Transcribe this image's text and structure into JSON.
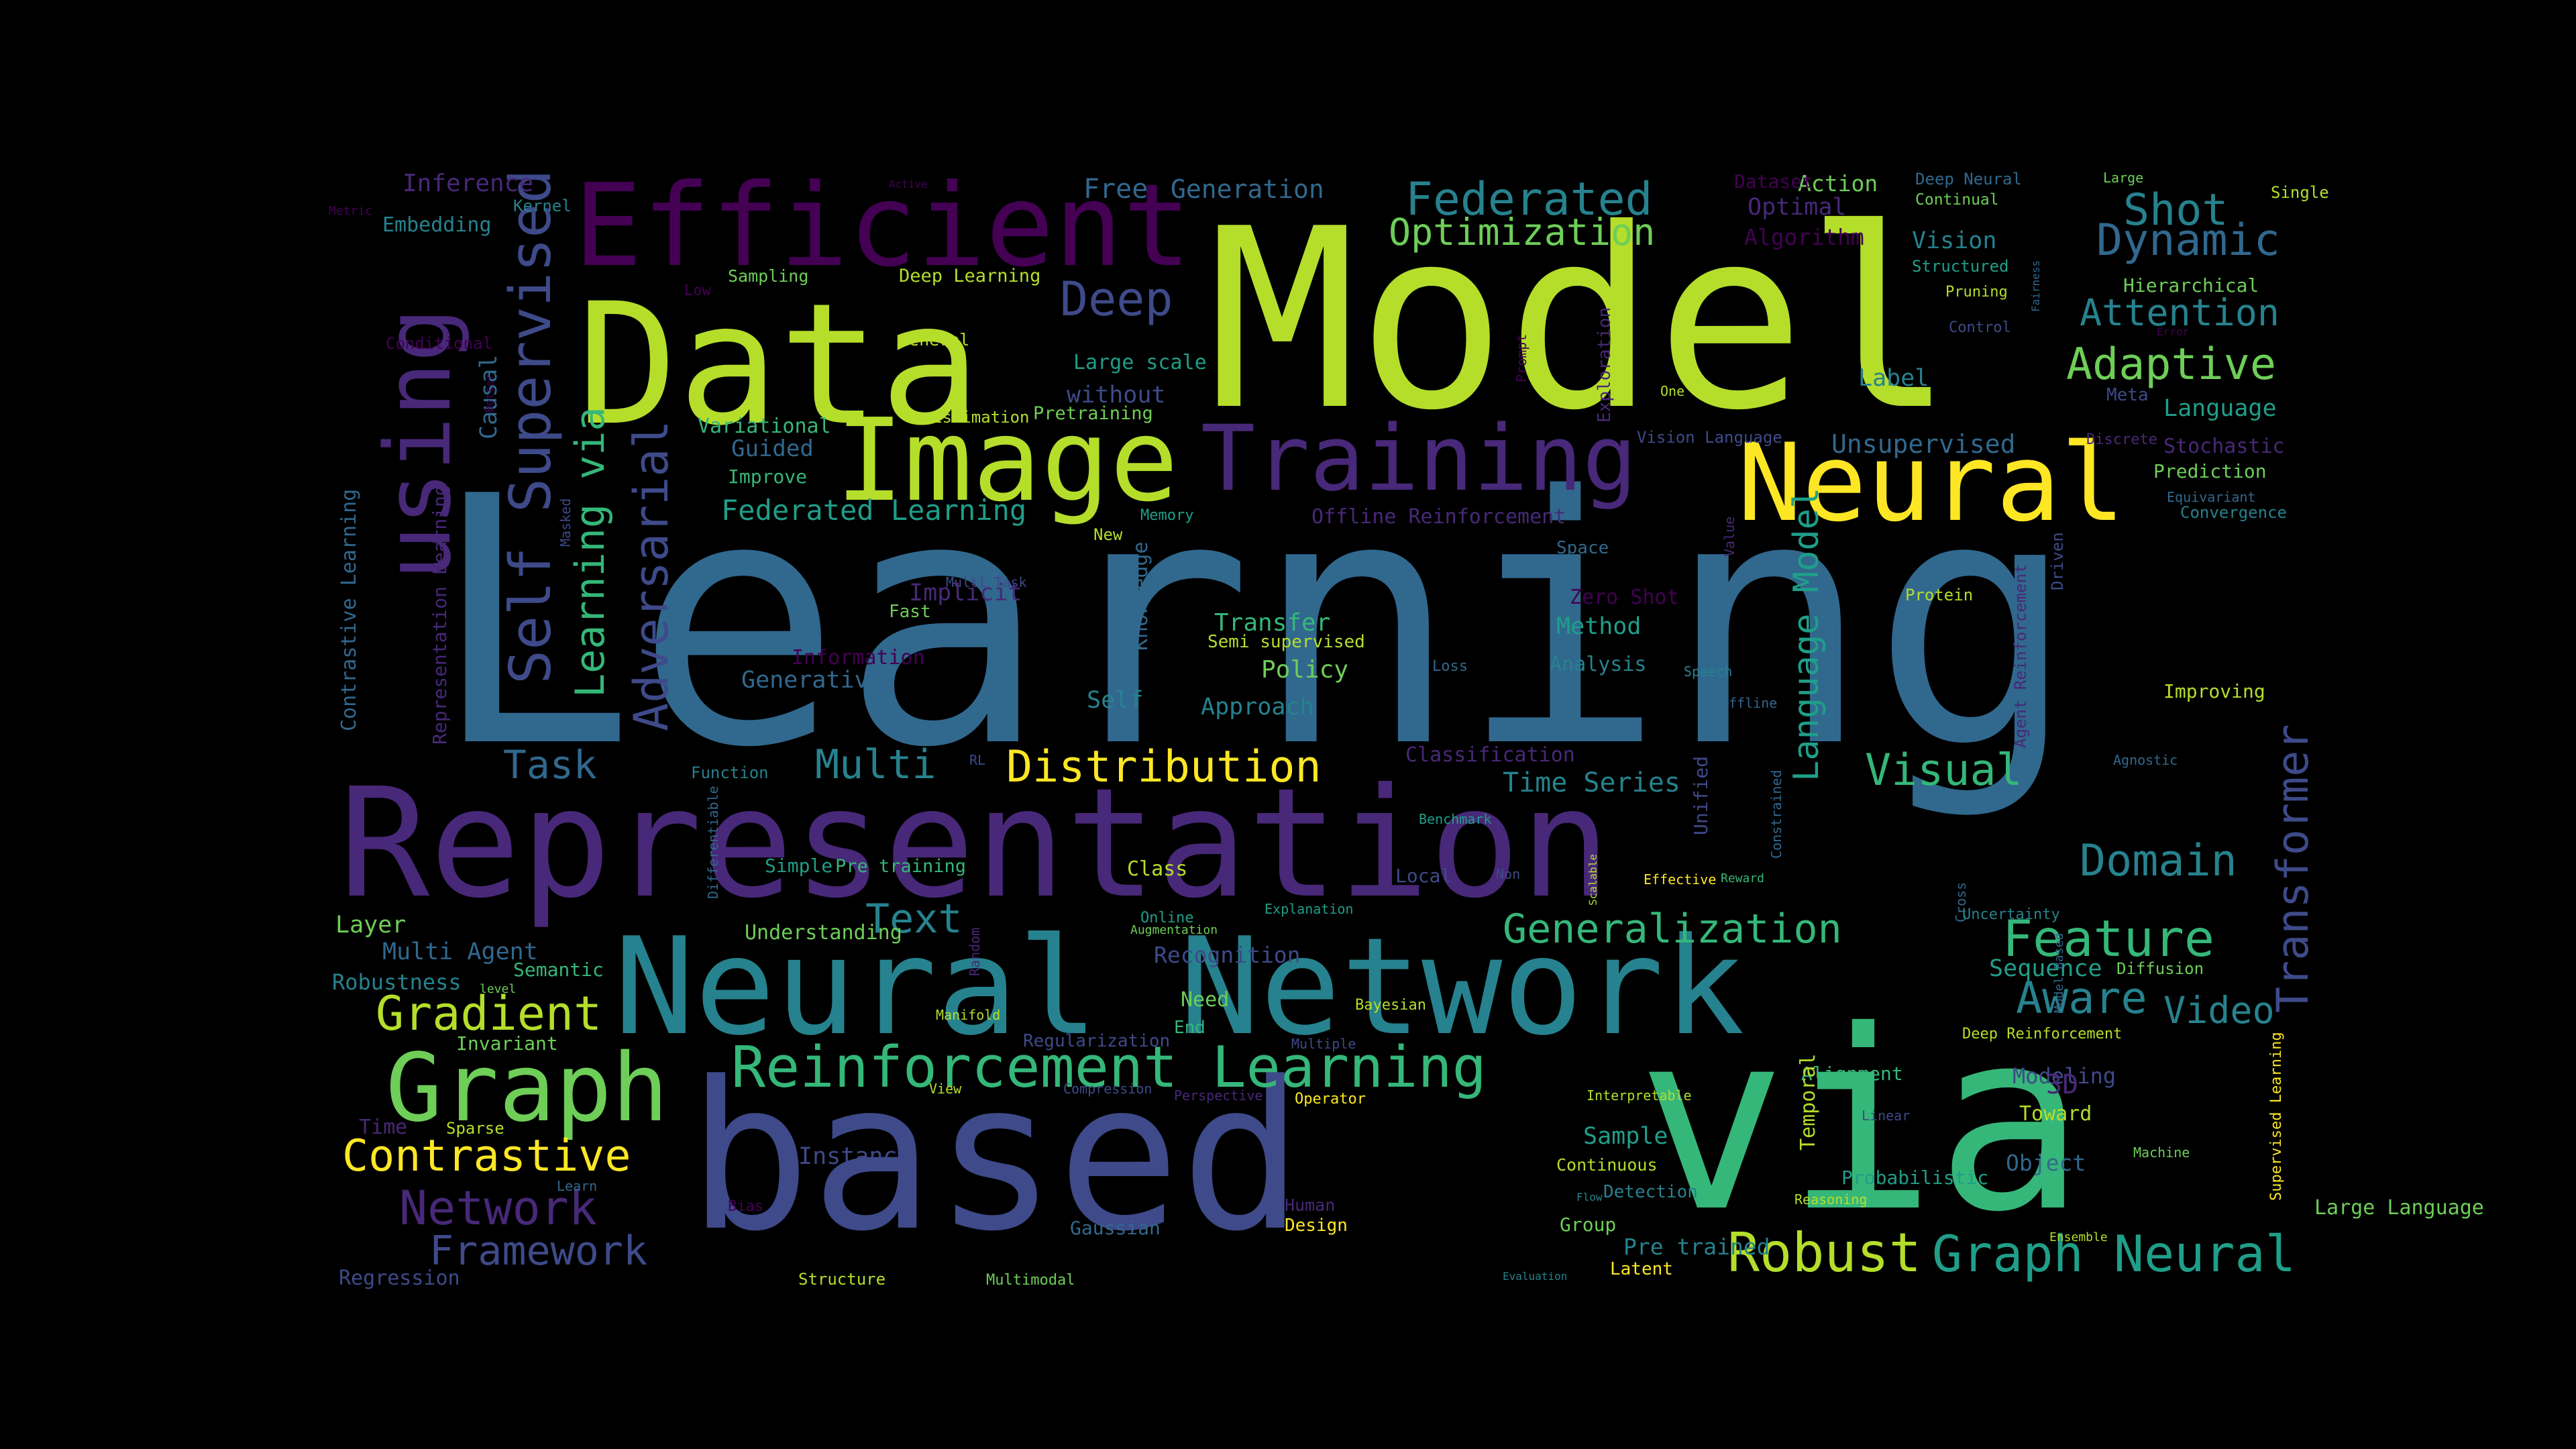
{
  "title": "Word cloud",
  "palette": {
    "background": "#000000",
    "yellow": "#fde725",
    "lime": "#b5de2b",
    "green": "#6ece58",
    "teal_green": "#35b779",
    "teal": "#1f9e89",
    "blue_teal": "#26828e",
    "steel": "#31688e",
    "indigo": "#3e4a89",
    "violet": "#482878",
    "deep_purple": "#440154"
  },
  "words": [
    {
      "text": "Learning",
      "color": "#31688e",
      "rotate": 0
    },
    {
      "text": "Model",
      "color": "#b5de2b",
      "rotate": 0
    },
    {
      "text": "Representation",
      "color": "#482878",
      "rotate": 0
    },
    {
      "text": "based",
      "color": "#3e4a89",
      "rotate": 0
    },
    {
      "text": "via",
      "color": "#35b779",
      "rotate": 0
    },
    {
      "text": "Data",
      "color": "#b5de2b",
      "rotate": 0
    },
    {
      "text": "Neural Network",
      "color": "#26828e",
      "rotate": 0
    },
    {
      "text": "Efficient",
      "color": "#440154",
      "rotate": 0
    },
    {
      "text": "Image",
      "color": "#b5de2b",
      "rotate": 0
    },
    {
      "text": "Neural",
      "color": "#fde725",
      "rotate": 0
    },
    {
      "text": "Training",
      "color": "#482878",
      "rotate": 0
    },
    {
      "text": "using",
      "color": "#482878",
      "rotate": -90
    },
    {
      "text": "Graph",
      "color": "#6ece58",
      "rotate": 0
    },
    {
      "text": "Reinforcement Learning",
      "color": "#35b779",
      "rotate": 0
    },
    {
      "text": "Self Supervised",
      "color": "#3e4a89",
      "rotate": -90
    },
    {
      "text": "Adversarial",
      "color": "#3e4a89",
      "rotate": -90
    },
    {
      "text": "Learning via",
      "color": "#35b779",
      "rotate": -90
    },
    {
      "text": "Transformer",
      "color": "#3e4a89",
      "rotate": -90
    },
    {
      "text": "Distribution",
      "color": "#fde725",
      "rotate": 0
    },
    {
      "text": "Generalization",
      "color": "#35b779",
      "rotate": 0
    },
    {
      "text": "Feature",
      "color": "#35b779",
      "rotate": 0
    },
    {
      "text": "Robust",
      "color": "#b5de2b",
      "rotate": 0
    },
    {
      "text": "Graph Neural",
      "color": "#1f9e89",
      "rotate": 0
    },
    {
      "text": "Gradient",
      "color": "#b5de2b",
      "rotate": 0
    },
    {
      "text": "Contrastive",
      "color": "#fde725",
      "rotate": 0
    },
    {
      "text": "Network",
      "color": "#482878",
      "rotate": 0
    },
    {
      "text": "Framework",
      "color": "#3e4a89",
      "rotate": 0
    },
    {
      "text": "Federated",
      "color": "#26828e",
      "rotate": 0
    },
    {
      "text": "Optimization",
      "color": "#6ece58",
      "rotate": 0
    },
    {
      "text": "Deep",
      "color": "#3e4a89",
      "rotate": 0
    },
    {
      "text": "Shot",
      "color": "#26828e",
      "rotate": 0
    },
    {
      "text": "Dynamic",
      "color": "#31688e",
      "rotate": 0
    },
    {
      "text": "Adaptive",
      "color": "#6ece58",
      "rotate": 0
    },
    {
      "text": "Attention",
      "color": "#26828e",
      "rotate": 0
    },
    {
      "text": "Domain",
      "color": "#26828e",
      "rotate": 0
    },
    {
      "text": "Aware",
      "color": "#26828e",
      "rotate": 0
    },
    {
      "text": "Video",
      "color": "#26828e",
      "rotate": 0
    },
    {
      "text": "Visual",
      "color": "#35b779",
      "rotate": 0
    },
    {
      "text": "Multi",
      "color": "#26828e",
      "rotate": 0
    },
    {
      "text": "Task",
      "color": "#31688e",
      "rotate": 0
    },
    {
      "text": "Text",
      "color": "#26828e",
      "rotate": 0
    },
    {
      "text": "Language Model",
      "color": "#1f9e89",
      "rotate": -90
    },
    {
      "text": "Federated Learning",
      "color": "#1f9e89",
      "rotate": 0
    },
    {
      "text": "Time Series",
      "color": "#26828e",
      "rotate": 0
    },
    {
      "text": "Unsupervised",
      "color": "#31688e",
      "rotate": 0
    },
    {
      "text": "Generation",
      "color": "#31688e",
      "rotate": 0
    },
    {
      "text": "Free",
      "color": "#31688e",
      "rotate": 0
    },
    {
      "text": "Inference",
      "color": "#482878",
      "rotate": 0
    },
    {
      "text": "Embedding",
      "color": "#26828e",
      "rotate": 0
    },
    {
      "text": "Kernel",
      "color": "#26828e",
      "rotate": 0
    },
    {
      "text": "Metric",
      "color": "#440154",
      "rotate": 0
    },
    {
      "text": "Causal",
      "color": "#31688e",
      "rotate": -90
    },
    {
      "text": "Conditional",
      "color": "#440154",
      "rotate": 0
    },
    {
      "text": "Contrastive Learning",
      "color": "#31688e",
      "rotate": -90
    },
    {
      "text": "Representation Learning",
      "color": "#482878",
      "rotate": -90
    },
    {
      "text": "Masked",
      "color": "#3e4a89",
      "rotate": -90
    },
    {
      "text": "Better",
      "color": "#440154",
      "rotate": -90
    },
    {
      "text": "Sampling",
      "color": "#6ece58",
      "rotate": 0
    },
    {
      "text": "Low",
      "color": "#440154",
      "rotate": 0
    },
    {
      "text": "Deep Learning",
      "color": "#b5de2b",
      "rotate": 0
    },
    {
      "text": "General",
      "color": "#b5de2b",
      "rotate": 0
    },
    {
      "text": "Active",
      "color": "#440154",
      "rotate": 0
    },
    {
      "text": "Estimation",
      "color": "#b5de2b",
      "rotate": 0
    },
    {
      "text": "Variational",
      "color": "#35b779",
      "rotate": 0
    },
    {
      "text": "Guided",
      "color": "#31688e",
      "rotate": 0
    },
    {
      "text": "Improve",
      "color": "#35b779",
      "rotate": 0
    },
    {
      "text": "Pretraining",
      "color": "#6ece58",
      "rotate": 0
    },
    {
      "text": "without",
      "color": "#3e4a89",
      "rotate": 0
    },
    {
      "text": "Large scale",
      "color": "#1f9e89",
      "rotate": 0
    },
    {
      "text": "Action",
      "color": "#6ece58",
      "rotate": 0
    },
    {
      "text": "Dataset",
      "color": "#440154",
      "rotate": 0
    },
    {
      "text": "Optimal",
      "color": "#482878",
      "rotate": 0
    },
    {
      "text": "Algorithm",
      "color": "#440154",
      "rotate": 0
    },
    {
      "text": "Deep Neural",
      "color": "#31688e",
      "rotate": 0
    },
    {
      "text": "Continual",
      "color": "#6ece58",
      "rotate": 0
    },
    {
      "text": "Vision",
      "color": "#26828e",
      "rotate": 0
    },
    {
      "text": "Structured",
      "color": "#1f9e89",
      "rotate": 0
    },
    {
      "text": "Pruning",
      "color": "#b5de2b",
      "rotate": 0
    },
    {
      "text": "Large",
      "color": "#6ece58",
      "rotate": 0
    },
    {
      "text": "Single",
      "color": "#b5de2b",
      "rotate": 0
    },
    {
      "text": "Hierarchical",
      "color": "#6ece58",
      "rotate": 0
    },
    {
      "text": "Fairness",
      "color": "#31688e",
      "rotate": -90
    },
    {
      "text": "Control",
      "color": "#3e4a89",
      "rotate": 0
    },
    {
      "text": "Error",
      "color": "#440154",
      "rotate": 0
    },
    {
      "text": "Meta",
      "color": "#3e4a89",
      "rotate": 0
    },
    {
      "text": "Prompt",
      "color": "#440154",
      "rotate": -90
    },
    {
      "text": "Exploration",
      "color": "#482878",
      "rotate": -90
    },
    {
      "text": "One",
      "color": "#b5de2b",
      "rotate": 0
    },
    {
      "text": "Label",
      "color": "#26828e",
      "rotate": 0
    },
    {
      "text": "Language",
      "color": "#1f9e89",
      "rotate": 0
    },
    {
      "text": "Discrete",
      "color": "#482878",
      "rotate": 0
    },
    {
      "text": "Stochastic",
      "color": "#482878",
      "rotate": 0
    },
    {
      "text": "Prediction",
      "color": "#6ece58",
      "rotate": 0
    },
    {
      "text": "Equivariant",
      "color": "#31688e",
      "rotate": 0
    },
    {
      "text": "Convergence",
      "color": "#26828e",
      "rotate": 0
    },
    {
      "text": "Vision Language",
      "color": "#3e4a89",
      "rotate": 0
    },
    {
      "text": "Offline Reinforcement",
      "color": "#482878",
      "rotate": 0
    },
    {
      "text": "Memory",
      "color": "#1f9e89",
      "rotate": 0
    },
    {
      "text": "New",
      "color": "#b5de2b",
      "rotate": 0
    },
    {
      "text": "Space",
      "color": "#31688e",
      "rotate": 0
    },
    {
      "text": "Value",
      "color": "#482878",
      "rotate": -90
    },
    {
      "text": "Driven",
      "color": "#3e4a89",
      "rotate": -90
    },
    {
      "text": "Agent Reinforcement",
      "color": "#482878",
      "rotate": -90
    },
    {
      "text": "Protein",
      "color": "#b5de2b",
      "rotate": 0
    },
    {
      "text": "Multi Task",
      "color": "#3e4a89",
      "rotate": 0
    },
    {
      "text": "Implicit",
      "color": "#482878",
      "rotate": 0
    },
    {
      "text": "Fast",
      "color": "#6ece58",
      "rotate": 0
    },
    {
      "text": "Knowledge",
      "color": "#31688e",
      "rotate": -90
    },
    {
      "text": "Transfer",
      "color": "#35b779",
      "rotate": 0
    },
    {
      "text": "Semi supervised",
      "color": "#b5de2b",
      "rotate": 0
    },
    {
      "text": "Policy",
      "color": "#6ece58",
      "rotate": 0
    },
    {
      "text": "Method",
      "color": "#1f9e89",
      "rotate": 0
    },
    {
      "text": "Analysis",
      "color": "#26828e",
      "rotate": 0
    },
    {
      "text": "Zero Shot",
      "color": "#440154",
      "rotate": 0
    },
    {
      "text": "Loss",
      "color": "#31688e",
      "rotate": 0
    },
    {
      "text": "Speech",
      "color": "#26828e",
      "rotate": 0
    },
    {
      "text": "Offline",
      "color": "#31688e",
      "rotate": 0
    },
    {
      "text": "Improving",
      "color": "#b5de2b",
      "rotate": 0
    },
    {
      "text": "Information",
      "color": "#440154",
      "rotate": 0
    },
    {
      "text": "Generative",
      "color": "#31688e",
      "rotate": 0
    },
    {
      "text": "Self",
      "color": "#26828e",
      "rotate": 0
    },
    {
      "text": "Approach",
      "color": "#26828e",
      "rotate": 0
    },
    {
      "text": "Classification",
      "color": "#482878",
      "rotate": 0
    },
    {
      "text": "Unified",
      "color": "#3e4a89",
      "rotate": -90
    },
    {
      "text": "Constrained",
      "color": "#31688e",
      "rotate": -90
    },
    {
      "text": "Agnostic",
      "color": "#31688e",
      "rotate": 0
    },
    {
      "text": "Function",
      "color": "#26828e",
      "rotate": 0
    },
    {
      "text": "RL",
      "color": "#3e4a89",
      "rotate": 0
    },
    {
      "text": "Benchmark",
      "color": "#1f9e89",
      "rotate": 0
    },
    {
      "text": "Differentiable",
      "color": "#31688e",
      "rotate": -90
    },
    {
      "text": "Simple",
      "color": "#1f9e89",
      "rotate": 0
    },
    {
      "text": "Pre training",
      "color": "#35b779",
      "rotate": 0
    },
    {
      "text": "Class",
      "color": "#b5de2b",
      "rotate": 0
    },
    {
      "text": "Local",
      "color": "#3e4a89",
      "rotate": 0
    },
    {
      "text": "Non",
      "color": "#3e4a89",
      "rotate": 0
    },
    {
      "text": "Scalable",
      "color": "#b5de2b",
      "rotate": -90
    },
    {
      "text": "Effective",
      "color": "#fde725",
      "rotate": 0
    },
    {
      "text": "Reward",
      "color": "#35b779",
      "rotate": 0
    },
    {
      "text": "Cross",
      "color": "#31688e",
      "rotate": -90
    },
    {
      "text": "Understanding",
      "color": "#6ece58",
      "rotate": 0
    },
    {
      "text": "Online",
      "color": "#1f9e89",
      "rotate": 0
    },
    {
      "text": "Augmentation",
      "color": "#6ece58",
      "rotate": 0
    },
    {
      "text": "Explanation",
      "color": "#1f9e89",
      "rotate": 0
    },
    {
      "text": "Uncertainty",
      "color": "#26828e",
      "rotate": 0
    },
    {
      "text": "Layer",
      "color": "#6ece58",
      "rotate": 0
    },
    {
      "text": "Multi Agent",
      "color": "#31688e",
      "rotate": 0
    },
    {
      "text": "Robustness",
      "color": "#26828e",
      "rotate": 0
    },
    {
      "text": "Semantic",
      "color": "#35b779",
      "rotate": 0
    },
    {
      "text": "level",
      "color": "#6ece58",
      "rotate": 0
    },
    {
      "text": "Recognition",
      "color": "#3e4a89",
      "rotate": 0
    },
    {
      "text": "Sequence",
      "color": "#1f9e89",
      "rotate": 0
    },
    {
      "text": "Diffusion",
      "color": "#6ece58",
      "rotate": 0
    },
    {
      "text": "Large Language",
      "color": "#6ece58",
      "rotate": 0
    },
    {
      "text": "Supervised Learning",
      "color": "#fde725",
      "rotate": -90
    },
    {
      "text": "Model Based",
      "color": "#31688e",
      "rotate": -90
    },
    {
      "text": "Random",
      "color": "#482878",
      "rotate": -90
    },
    {
      "text": "Manifold",
      "color": "#b5de2b",
      "rotate": 0
    },
    {
      "text": "Need",
      "color": "#6ece58",
      "rotate": 0
    },
    {
      "text": "End",
      "color": "#35b779",
      "rotate": 0
    },
    {
      "text": "Bayesian",
      "color": "#b5de2b",
      "rotate": 0
    },
    {
      "text": "Multiple",
      "color": "#3e4a89",
      "rotate": 0
    },
    {
      "text": "Deep Reinforcement",
      "color": "#b5de2b",
      "rotate": 0
    },
    {
      "text": "Invariant",
      "color": "#6ece58",
      "rotate": 0
    },
    {
      "text": "Regularization",
      "color": "#3e4a89",
      "rotate": 0
    },
    {
      "text": "View",
      "color": "#b5de2b",
      "rotate": 0
    },
    {
      "text": "Compression",
      "color": "#3e4a89",
      "rotate": 0
    },
    {
      "text": "Perspective",
      "color": "#482878",
      "rotate": 0
    },
    {
      "text": "Operator",
      "color": "#fde725",
      "rotate": 0
    },
    {
      "text": "Interpretable",
      "color": "#b5de2b",
      "rotate": 0
    },
    {
      "text": "Alignment",
      "color": "#35b779",
      "rotate": 0
    },
    {
      "text": "Modeling",
      "color": "#3e4a89",
      "rotate": 0
    },
    {
      "text": "3D",
      "color": "#482878",
      "rotate": 0
    },
    {
      "text": "Toward",
      "color": "#b5de2b",
      "rotate": 0
    },
    {
      "text": "Linear",
      "color": "#3e4a89",
      "rotate": 0
    },
    {
      "text": "Time",
      "color": "#482878",
      "rotate": 0
    },
    {
      "text": "Sparse",
      "color": "#b5de2b",
      "rotate": 0
    },
    {
      "text": "Sample",
      "color": "#1f9e89",
      "rotate": 0
    },
    {
      "text": "Object",
      "color": "#31688e",
      "rotate": 0
    },
    {
      "text": "Temporal",
      "color": "#b5de2b",
      "rotate": -90
    },
    {
      "text": "Continuous",
      "color": "#b5de2b",
      "rotate": 0
    },
    {
      "text": "Probabilistic",
      "color": "#1f9e89",
      "rotate": 0
    },
    {
      "text": "Machine",
      "color": "#6ece58",
      "rotate": 0
    },
    {
      "text": "Learn",
      "color": "#31688e",
      "rotate": 0
    },
    {
      "text": "Instance",
      "color": "#3e4a89",
      "rotate": 0
    },
    {
      "text": "Bias",
      "color": "#440154",
      "rotate": 0
    },
    {
      "text": "Gaussian",
      "color": "#31688e",
      "rotate": 0
    },
    {
      "text": "Human",
      "color": "#482878",
      "rotate": 0
    },
    {
      "text": "Design",
      "color": "#fde725",
      "rotate": 0
    },
    {
      "text": "Detection",
      "color": "#26828e",
      "rotate": 0
    },
    {
      "text": "Reasoning",
      "color": "#b5de2b",
      "rotate": 0
    },
    {
      "text": "Group",
      "color": "#6ece58",
      "rotate": 0
    },
    {
      "text": "Pre trained",
      "color": "#26828e",
      "rotate": 0
    },
    {
      "text": "Latent",
      "color": "#fde725",
      "rotate": 0
    },
    {
      "text": "Ensemble",
      "color": "#b5de2b",
      "rotate": 0
    },
    {
      "text": "Regression",
      "color": "#3e4a89",
      "rotate": 0
    },
    {
      "text": "Structure",
      "color": "#b5de2b",
      "rotate": 0
    },
    {
      "text": "Multimodal",
      "color": "#6ece58",
      "rotate": 0
    },
    {
      "text": "Evaluation",
      "color": "#26828e",
      "rotate": 0
    },
    {
      "text": "Flow",
      "color": "#26828e",
      "rotate": 0
    },
    {
      "text": "Distillation",
      "color": "#26828e",
      "rotate": 0
    }
  ]
}
